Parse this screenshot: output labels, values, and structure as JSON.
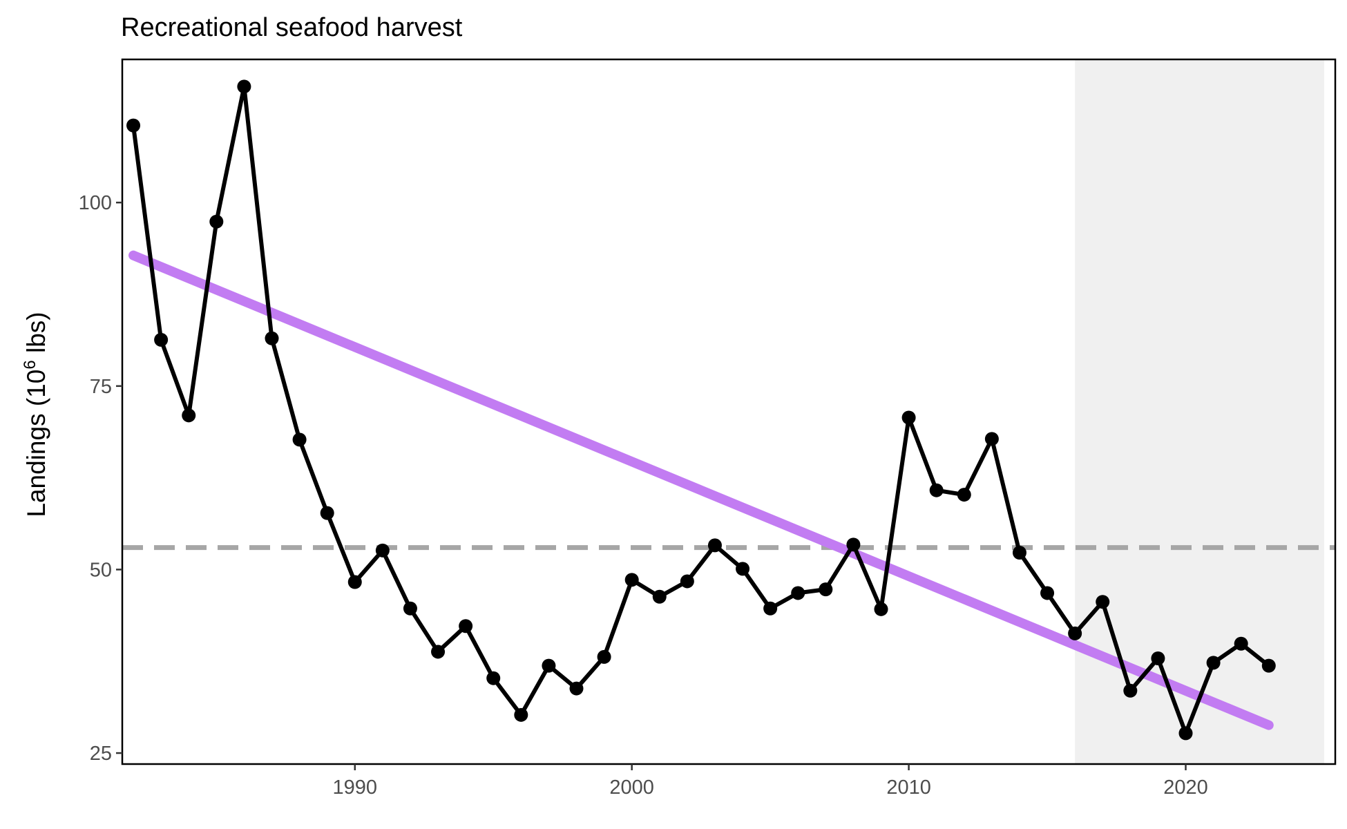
{
  "chart_data": {
    "type": "line",
    "title": "Recreational seafood harvest",
    "xlabel": "",
    "ylabel": {
      "prefix": "Landings (10",
      "superscript": "6",
      "suffix": " lbs)"
    },
    "xlim": [
      1981.6,
      2025.4
    ],
    "ylim": [
      23.5,
      119.5
    ],
    "x_ticks": [
      1990,
      2000,
      2010,
      2020
    ],
    "y_ticks": [
      25,
      50,
      75,
      100
    ],
    "grid": false,
    "series": [
      {
        "x": [
          1982,
          1983,
          1984,
          1985,
          1986,
          1987,
          1988,
          1989,
          1990,
          1991,
          1992,
          1993,
          1994,
          1995,
          1996,
          1997,
          1998,
          1999,
          2000,
          2001,
          2002,
          2003,
          2004,
          2005,
          2006,
          2007,
          2008,
          2009,
          2010,
          2011,
          2012,
          2013,
          2014,
          2015,
          2016,
          2017,
          2018,
          2019,
          2020,
          2021,
          2022,
          2023
        ],
        "y": [
          110.5,
          81.3,
          71.0,
          97.4,
          115.8,
          81.5,
          67.7,
          57.7,
          48.3,
          52.6,
          44.7,
          38.8,
          42.3,
          35.2,
          30.2,
          36.9,
          33.8,
          38.1,
          48.6,
          46.3,
          48.4,
          53.3,
          50.1,
          44.7,
          46.8,
          47.3,
          53.4,
          44.6,
          70.7,
          60.8,
          60.2,
          67.8,
          52.3,
          46.8,
          41.3,
          45.6,
          33.5,
          37.9,
          27.7,
          37.3,
          39.9,
          36.9
        ]
      }
    ],
    "trend_line": {
      "x": [
        1982,
        2023
      ],
      "y": [
        92.8,
        28.8
      ]
    },
    "reference_line": {
      "y": 53.0,
      "style": "dashed"
    },
    "shaded_region": {
      "x": [
        2016,
        2025
      ]
    },
    "colors": {
      "series": "#000000",
      "trend": "#c27cf2",
      "reference": "#a6a6a6",
      "shade": "#f0f0f0",
      "tick_label": "#4d4d4d"
    }
  }
}
